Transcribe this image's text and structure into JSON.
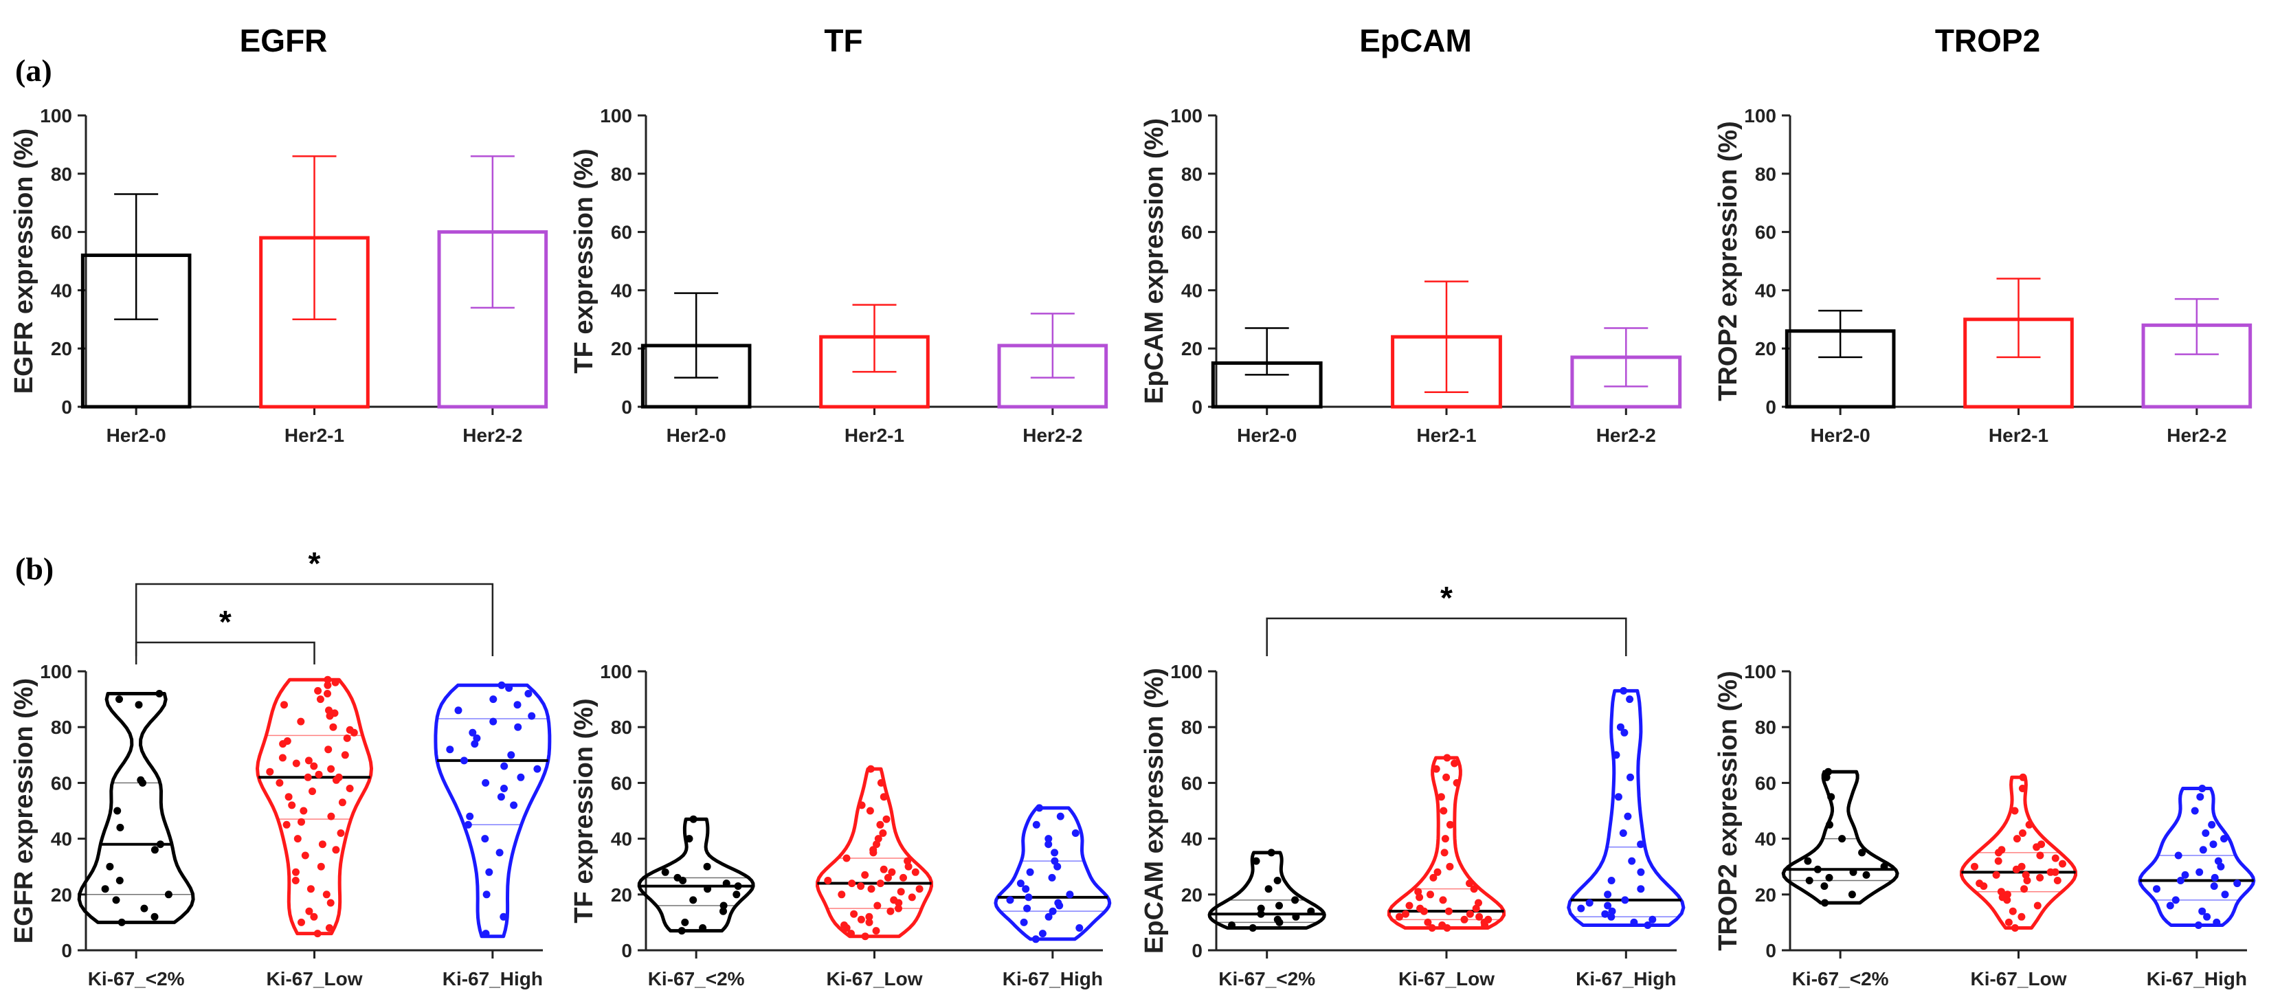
{
  "panel_labels": [
    "(a)",
    "(b)"
  ],
  "colors": {
    "black": "#000000",
    "red": "#ff1a1a",
    "purple": "#b44fd6",
    "blue": "#1a1aff"
  },
  "chart_data": [
    {
      "type": "bar",
      "panel": "a",
      "title": "EGFR",
      "ylabel": "EGFR expression (%)",
      "ylim": [
        0,
        100
      ],
      "yticks": [
        0,
        20,
        40,
        60,
        80,
        100
      ],
      "categories": [
        "Her2-0",
        "Her2-1",
        "Her2-2"
      ],
      "values": [
        52,
        58,
        60
      ],
      "err_low": [
        30,
        30,
        34
      ],
      "err_high": [
        73,
        86,
        86
      ],
      "colors": [
        "#000000",
        "#ff1a1a",
        "#b44fd6"
      ]
    },
    {
      "type": "bar",
      "panel": "a",
      "title": "TF",
      "ylabel": "TF expression (%)",
      "ylim": [
        0,
        100
      ],
      "yticks": [
        0,
        20,
        40,
        60,
        80,
        100
      ],
      "categories": [
        "Her2-0",
        "Her2-1",
        "Her2-2"
      ],
      "values": [
        21,
        24,
        21
      ],
      "err_low": [
        10,
        12,
        10
      ],
      "err_high": [
        39,
        35,
        32
      ],
      "colors": [
        "#000000",
        "#ff1a1a",
        "#b44fd6"
      ]
    },
    {
      "type": "bar",
      "panel": "a",
      "title": "EpCAM",
      "ylabel": "EpCAM expression (%)",
      "ylim": [
        0,
        100
      ],
      "yticks": [
        0,
        20,
        40,
        60,
        80,
        100
      ],
      "categories": [
        "Her2-0",
        "Her2-1",
        "Her2-2"
      ],
      "values": [
        15,
        24,
        17
      ],
      "err_low": [
        11,
        5,
        7
      ],
      "err_high": [
        27,
        43,
        27
      ],
      "colors": [
        "#000000",
        "#ff1a1a",
        "#b44fd6"
      ]
    },
    {
      "type": "bar",
      "panel": "a",
      "title": "TROP2",
      "ylabel": "TROP2 expression (%)",
      "ylim": [
        0,
        100
      ],
      "yticks": [
        0,
        20,
        40,
        60,
        80,
        100
      ],
      "categories": [
        "Her2-0",
        "Her2-1",
        "Her2-2"
      ],
      "values": [
        26,
        30,
        28
      ],
      "err_low": [
        17,
        17,
        18
      ],
      "err_high": [
        33,
        44,
        37
      ],
      "colors": [
        "#000000",
        "#ff1a1a",
        "#b44fd6"
      ]
    },
    {
      "type": "violin",
      "panel": "b",
      "ylabel": "EGFR expression (%)",
      "ylim": [
        0,
        100
      ],
      "yticks": [
        0,
        20,
        40,
        60,
        80,
        100
      ],
      "categories": [
        "Ki-67_<2%",
        "Ki-67_Low",
        "Ki-67_High"
      ],
      "colors": [
        "#000000",
        "#ff1a1a",
        "#1a1aff"
      ],
      "range": [
        [
          10,
          92
        ],
        [
          6,
          97
        ],
        [
          5,
          95
        ]
      ],
      "median": [
        38,
        62,
        68
      ],
      "quartiles": [
        [
          20,
          60
        ],
        [
          47,
          77
        ],
        [
          45,
          83
        ]
      ],
      "points": [
        [
          92,
          90,
          88,
          61,
          60,
          50,
          44,
          38,
          36,
          30,
          25,
          22,
          20,
          18,
          15,
          12,
          10
        ],
        [
          97,
          96,
          95,
          93,
          92,
          90,
          88,
          86,
          85,
          84,
          82,
          80,
          79,
          78,
          76,
          75,
          74,
          72,
          70,
          69,
          68,
          67,
          66,
          65,
          64,
          63,
          62,
          62,
          61,
          60,
          58,
          57,
          55,
          53,
          52,
          50,
          48,
          46,
          45,
          42,
          40,
          38,
          36,
          34,
          30,
          28,
          25,
          22,
          20,
          17,
          14,
          12,
          10,
          8,
          6
        ],
        [
          95,
          94,
          92,
          90,
          88,
          86,
          84,
          82,
          80,
          78,
          76,
          74,
          72,
          70,
          68,
          66,
          65,
          62,
          60,
          58,
          55,
          52,
          48,
          45,
          40,
          35,
          28,
          20,
          12,
          6
        ]
      ],
      "significance": [
        {
          "from": 0,
          "to": 1,
          "label": "*",
          "level": 1
        },
        {
          "from": 0,
          "to": 2,
          "label": "*",
          "level": 2
        }
      ]
    },
    {
      "type": "violin",
      "panel": "b",
      "ylabel": "TF expression (%)",
      "ylim": [
        0,
        100
      ],
      "yticks": [
        0,
        20,
        40,
        60,
        80,
        100
      ],
      "categories": [
        "Ki-67_<2%",
        "Ki-67_Low",
        "Ki-67_High"
      ],
      "colors": [
        "#000000",
        "#ff1a1a",
        "#1a1aff"
      ],
      "range": [
        [
          7,
          47
        ],
        [
          5,
          65
        ],
        [
          4,
          51
        ]
      ],
      "median": [
        23,
        24,
        19
      ],
      "quartiles": [
        [
          16,
          26
        ],
        [
          15,
          33
        ],
        [
          14,
          32
        ]
      ],
      "points": [
        [
          47,
          40,
          30,
          28,
          26,
          25,
          24,
          23,
          22,
          20,
          18,
          16,
          14,
          10,
          8,
          7
        ],
        [
          65,
          60,
          55,
          52,
          50,
          47,
          45,
          42,
          40,
          38,
          36,
          35,
          33,
          32,
          30,
          29,
          28,
          27,
          26,
          25,
          24,
          24,
          23,
          22,
          21,
          20,
          19,
          18,
          17,
          16,
          15,
          14,
          13,
          12,
          11,
          10,
          9,
          8,
          7,
          6,
          5,
          28,
          26,
          22
        ],
        [
          51,
          48,
          45,
          42,
          40,
          38,
          35,
          32,
          30,
          28,
          26,
          24,
          22,
          20,
          19,
          18,
          17,
          16,
          15,
          14,
          12,
          10,
          8,
          6,
          4
        ]
      ],
      "significance": []
    },
    {
      "type": "violin",
      "panel": "b",
      "ylabel": "EpCAM expression (%)",
      "ylim": [
        0,
        100
      ],
      "yticks": [
        0,
        20,
        40,
        60,
        80,
        100
      ],
      "categories": [
        "Ki-67_<2%",
        "Ki-67_Low",
        "Ki-67_High"
      ],
      "colors": [
        "#000000",
        "#ff1a1a",
        "#1a1aff"
      ],
      "range": [
        [
          8,
          35
        ],
        [
          8,
          69
        ],
        [
          9,
          93
        ]
      ],
      "median": [
        13,
        14,
        18
      ],
      "quartiles": [
        [
          10,
          18
        ],
        [
          11,
          22
        ],
        [
          12,
          37
        ]
      ],
      "points": [
        [
          35,
          32,
          25,
          22,
          18,
          16,
          15,
          14,
          13,
          12,
          11,
          10,
          9,
          8
        ],
        [
          69,
          67,
          65,
          62,
          60,
          55,
          50,
          45,
          40,
          35,
          30,
          28,
          26,
          24,
          22,
          21,
          20,
          19,
          18,
          17,
          16,
          15,
          15,
          14,
          14,
          13,
          13,
          12,
          12,
          11,
          11,
          10,
          10,
          9,
          9,
          8,
          8
        ],
        [
          93,
          90,
          80,
          78,
          70,
          62,
          55,
          48,
          42,
          38,
          32,
          28,
          25,
          22,
          20,
          18,
          17,
          16,
          15,
          14,
          13,
          12,
          11,
          10,
          9
        ]
      ],
      "significance": [
        {
          "from": 0,
          "to": 2,
          "label": "*",
          "level": 1
        }
      ]
    },
    {
      "type": "violin",
      "panel": "b",
      "ylabel": "TROP2 expression (%)",
      "ylim": [
        0,
        100
      ],
      "yticks": [
        0,
        20,
        40,
        60,
        80,
        100
      ],
      "categories": [
        "Ki-67_<2%",
        "Ki-67_Low",
        "Ki-67_High"
      ],
      "colors": [
        "#000000",
        "#ff1a1a",
        "#1a1aff"
      ],
      "range": [
        [
          17,
          64
        ],
        [
          8,
          62
        ],
        [
          9,
          58
        ]
      ],
      "median": [
        29,
        28,
        25
      ],
      "quartiles": [
        [
          25,
          40
        ],
        [
          21,
          35
        ],
        [
          18,
          34
        ]
      ],
      "points": [
        [
          64,
          62,
          55,
          45,
          40,
          35,
          32,
          30,
          29,
          28,
          27,
          26,
          25,
          23,
          20,
          17
        ],
        [
          62,
          58,
          50,
          45,
          42,
          40,
          38,
          37,
          36,
          35,
          34,
          33,
          32,
          31,
          30,
          29,
          28,
          28,
          27,
          26,
          25,
          24,
          23,
          22,
          21,
          20,
          19,
          18,
          16,
          14,
          12,
          10,
          8,
          30,
          27,
          25
        ],
        [
          58,
          55,
          50,
          45,
          42,
          40,
          38,
          36,
          34,
          32,
          30,
          28,
          27,
          26,
          25,
          24,
          23,
          22,
          20,
          18,
          16,
          14,
          12,
          10,
          9
        ]
      ],
      "significance": []
    }
  ]
}
